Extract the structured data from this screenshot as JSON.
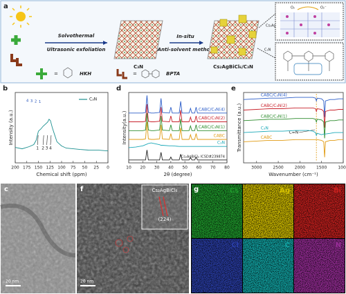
{
  "panel_a": {
    "label": "a",
    "step1_top": "Solvothermal",
    "step1_bottom": "Ultrasonic exfoliation",
    "sheet_label": "C₃N",
    "step2_top": "In-situ",
    "step2_bottom": "Anti-solvent method",
    "composite_label": "Cs₂AgBiCl₆/C₃N",
    "inset_top_label": "Cs₂AgBiCl₆",
    "inset_bottom_label": "C₃N",
    "oxygen": "O₂",
    "superoxide": "O₂⁻",
    "equals": "=",
    "monomers": [
      "HKH",
      "BPTA"
    ]
  },
  "chart_data": [
    {
      "type": "line",
      "panel": "b",
      "xlabel": "Chemical shift (ppm)",
      "ylabel": "Intensity (a.u.)",
      "legend": "top-right",
      "x": [
        200,
        185,
        170,
        160,
        155,
        150,
        145,
        140,
        135,
        130,
        127,
        124,
        120,
        115,
        110,
        100,
        90,
        75,
        60,
        40,
        20,
        0
      ],
      "xlim": [
        200,
        0
      ],
      "xticks": [
        200,
        175,
        150,
        125,
        100,
        75,
        50,
        25,
        0
      ],
      "ylim": [
        0,
        10
      ],
      "series": [
        {
          "name": "C₃N",
          "color": "#1a8f8f",
          "values": [
            2.2,
            2.0,
            2.3,
            2.6,
            3.2,
            4.5,
            4.8,
            5.2,
            5.5,
            5.8,
            6.2,
            6.0,
            5.0,
            4.0,
            3.0,
            2.4,
            2.1,
            2.0,
            1.9,
            1.8,
            1.8,
            1.7
          ]
        }
      ],
      "annotations": [
        {
          "text": "1",
          "x": 152
        },
        {
          "text": "2",
          "x": 140
        },
        {
          "text": "3",
          "x": 132
        },
        {
          "text": "4",
          "x": 124
        }
      ],
      "structure_labels": [
        "4",
        "3",
        "2",
        "1"
      ]
    },
    {
      "type": "line",
      "panel": "d",
      "xlabel": "2θ (degree)",
      "ylabel": "Intensity(a.u.)",
      "legend": "inline-right",
      "x": [
        10,
        15,
        20,
        22,
        23,
        24,
        26,
        28,
        32,
        33,
        34,
        39,
        40,
        41,
        46,
        47,
        48,
        53,
        54,
        55,
        57,
        58,
        59,
        65,
        70,
        75,
        80
      ],
      "xlim": [
        10,
        80
      ],
      "xticks": [
        10,
        20,
        30,
        40,
        50,
        60,
        70,
        80
      ],
      "ylim": [
        0,
        12
      ],
      "series": [
        {
          "name": "CABC/C₃N(4)",
          "color": "#2a5cc8",
          "values": [
            8.5,
            8.5,
            8.5,
            8.6,
            11.5,
            8.6,
            8.5,
            8.5,
            8.6,
            11,
            8.6,
            8.5,
            9.5,
            8.5,
            8.5,
            10.5,
            8.5,
            8.5,
            9.3,
            8.5,
            8.5,
            9.5,
            8.5,
            8.5,
            8.5,
            8.5,
            8.5
          ]
        },
        {
          "name": "CABC/C₃N(2)",
          "color": "#c8202a",
          "values": [
            7,
            7,
            7,
            7.1,
            10,
            7.1,
            7,
            7,
            7.1,
            9.5,
            7.1,
            7,
            8,
            7,
            7,
            9,
            7,
            7,
            7.8,
            7,
            7,
            8,
            7,
            7,
            7,
            7,
            7
          ]
        },
        {
          "name": "CABC/C₃N(1)",
          "color": "#2a8a2a",
          "values": [
            5.5,
            5.5,
            5.5,
            5.6,
            8.5,
            5.6,
            5.5,
            5.5,
            5.6,
            8,
            5.6,
            5.5,
            6.5,
            5.5,
            5.5,
            7.5,
            5.5,
            5.5,
            6.3,
            5.5,
            5.5,
            6.5,
            5.5,
            5.5,
            5.5,
            5.5,
            5.5
          ]
        },
        {
          "name": "CABC",
          "color": "#e09a10",
          "values": [
            4,
            4,
            4,
            4.1,
            7,
            4.1,
            4,
            4,
            4.1,
            6.5,
            4.1,
            4,
            5,
            4,
            4,
            6,
            4,
            4,
            4.8,
            4,
            4,
            5,
            4,
            4,
            4,
            4,
            4
          ]
        },
        {
          "name": "C₃N",
          "color": "#1aa8b8",
          "values": [
            2.6,
            2.7,
            2.9,
            3.1,
            3.2,
            3.3,
            3.4,
            3.3,
            3.1,
            3.0,
            3.0,
            2.9,
            2.9,
            2.9,
            2.8,
            2.8,
            2.8,
            2.8,
            2.8,
            2.8,
            2.8,
            2.8,
            2.8,
            2.8,
            2.8,
            2.8,
            2.8
          ]
        },
        {
          "name": "Cs₂AgBiCl₆ ICSD#239874",
          "color": "#222222",
          "values": [
            0.5,
            0.5,
            0.5,
            0.5,
            2.2,
            0.5,
            0.5,
            0.5,
            0.5,
            1.8,
            0.5,
            0.5,
            1,
            0.5,
            0.5,
            1.5,
            0.5,
            0.5,
            0.9,
            0.5,
            0.5,
            1,
            0.5,
            0.5,
            0.5,
            0.5,
            0.5
          ]
        }
      ]
    },
    {
      "type": "line",
      "panel": "e",
      "xlabel": "Wavenumber (cm⁻¹)",
      "ylabel": "Transmittance (a.u.)",
      "legend": "inline-left",
      "x": [
        3300,
        3000,
        2700,
        2400,
        2100,
        1800,
        1700,
        1640,
        1620,
        1600,
        1500,
        1450,
        1430,
        1410,
        1300,
        1200,
        1100,
        1000
      ],
      "xlim": [
        3300,
        1000
      ],
      "xticks": [
        3000,
        2500,
        2000,
        1500,
        1000
      ],
      "ylim": [
        0,
        10
      ],
      "series": [
        {
          "name": "CABC/C₃N(4)",
          "color": "#2a5cc8",
          "values": [
            9,
            9.1,
            9.2,
            9.2,
            9.3,
            9.3,
            9.3,
            9.2,
            8.8,
            9.2,
            9.1,
            8.8,
            6.5,
            8.8,
            9.0,
            9.0,
            9.1,
            9.1
          ]
        },
        {
          "name": "CABC/C₃N(2)",
          "color": "#c8202a",
          "values": [
            7.5,
            7.6,
            7.7,
            7.7,
            7.8,
            7.8,
            7.8,
            7.7,
            7.3,
            7.7,
            7.6,
            7.3,
            5.0,
            7.3,
            7.5,
            7.5,
            7.6,
            7.6
          ]
        },
        {
          "name": "CABC/C₃N(1)",
          "color": "#2a8a2a",
          "values": [
            6,
            6.1,
            6.2,
            6.2,
            6.3,
            6.3,
            6.3,
            6.2,
            5.8,
            6.2,
            6.1,
            5.8,
            3.5,
            5.8,
            6,
            6,
            6.1,
            6.1
          ]
        },
        {
          "name": "C₃N",
          "color": "#1aa8b8",
          "values": [
            4.3,
            4.4,
            4.5,
            4.5,
            4.6,
            4.6,
            4.5,
            4.3,
            3.9,
            4.2,
            4.0,
            4.1,
            4.1,
            4.1,
            4.2,
            4.3,
            4.3,
            4.3
          ]
        },
        {
          "name": "CABC",
          "color": "#e09a10",
          "values": [
            3,
            3.1,
            3.2,
            3.2,
            3.3,
            3.3,
            3.3,
            3.3,
            3.3,
            3.3,
            3.2,
            3.0,
            0.8,
            3.0,
            3.2,
            3.2,
            3.3,
            3.3
          ]
        }
      ],
      "annotations": [
        {
          "text": "C=N",
          "x": 1620,
          "dashed_line": true
        }
      ]
    }
  ],
  "panel_c": {
    "label": "c",
    "scale_bar": "20 nm"
  },
  "panel_f": {
    "label": "f",
    "scale_bar": "20 nm",
    "inset_title": "Cs₂AgBiCl₆",
    "inset_plane": "(224)"
  },
  "panel_g": {
    "label": "g",
    "maps": [
      {
        "element": "Cs",
        "color": "#1f9a2c"
      },
      {
        "element": "Ag",
        "color": "#d4c000"
      },
      {
        "element": "Bi",
        "color": "#c8201e"
      },
      {
        "element": "Cl",
        "color": "#2a3ea8"
      },
      {
        "element": "C",
        "color": "#12a6a6"
      },
      {
        "element": "N",
        "color": "#962c96"
      }
    ]
  }
}
